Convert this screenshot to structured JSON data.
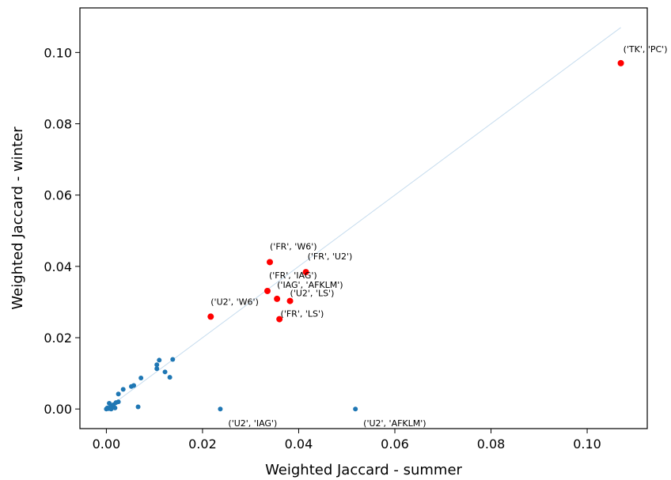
{
  "chart_data": {
    "type": "scatter",
    "xlabel": "Weighted Jaccard - summer",
    "ylabel": "Weighted Jaccard - winter",
    "xlim": [
      -0.0055,
      0.1125
    ],
    "ylim": [
      -0.0055,
      0.1125
    ],
    "xticks": [
      {
        "value": 0.0,
        "label": "0.00"
      },
      {
        "value": 0.02,
        "label": "0.02"
      },
      {
        "value": 0.04,
        "label": "0.04"
      },
      {
        "value": 0.06,
        "label": "0.06"
      },
      {
        "value": 0.08,
        "label": "0.08"
      },
      {
        "value": 0.1,
        "label": "0.10"
      }
    ],
    "yticks": [
      {
        "value": 0.0,
        "label": "0.00"
      },
      {
        "value": 0.02,
        "label": "0.02"
      },
      {
        "value": 0.04,
        "label": "0.04"
      },
      {
        "value": 0.06,
        "label": "0.06"
      },
      {
        "value": 0.08,
        "label": "0.08"
      },
      {
        "value": 0.1,
        "label": "0.10"
      }
    ],
    "grid": false,
    "reference_line": {
      "x": [
        0.0,
        0.107
      ],
      "y": [
        0.0,
        0.107
      ],
      "color": "#c6dcee"
    },
    "colors": {
      "normal": "#1f77b4",
      "highlight": "#ff0000"
    },
    "points": [
      {
        "x": 0.0,
        "y": 0.0
      },
      {
        "x": 0.0002,
        "y": 0.0003
      },
      {
        "x": 0.0005,
        "y": 0.0001
      },
      {
        "x": 0.0008,
        "y": 0.0004
      },
      {
        "x": 0.001,
        "y": 0.0
      },
      {
        "x": 0.0012,
        "y": 0.0008
      },
      {
        "x": 0.0015,
        "y": 0.0012
      },
      {
        "x": 0.0006,
        "y": 0.0016
      },
      {
        "x": 0.0018,
        "y": 0.0003
      },
      {
        "x": 0.002,
        "y": 0.0018
      },
      {
        "x": 0.0025,
        "y": 0.002
      },
      {
        "x": 0.0025,
        "y": 0.0042
      },
      {
        "x": 0.0035,
        "y": 0.0055
      },
      {
        "x": 0.0052,
        "y": 0.0063
      },
      {
        "x": 0.0057,
        "y": 0.0066
      },
      {
        "x": 0.0066,
        "y": 0.0006
      },
      {
        "x": 0.0072,
        "y": 0.0087
      },
      {
        "x": 0.0105,
        "y": 0.0113
      },
      {
        "x": 0.0105,
        "y": 0.0124
      },
      {
        "x": 0.011,
        "y": 0.0137
      },
      {
        "x": 0.0122,
        "y": 0.0104
      },
      {
        "x": 0.0132,
        "y": 0.0089
      },
      {
        "x": 0.0138,
        "y": 0.0139
      },
      {
        "x": 0.0237,
        "y": 0.0,
        "label": "('U2', 'IAG')",
        "dx": 10,
        "dy": 22
      },
      {
        "x": 0.0518,
        "y": 0.0,
        "label": "('U2', 'AFKLM')",
        "dx": 10,
        "dy": 22
      },
      {
        "x": 0.0217,
        "y": 0.0259,
        "highlight": true,
        "label": "('U2', 'W6')",
        "dx": 0,
        "dy": -15
      },
      {
        "x": 0.0335,
        "y": 0.0331,
        "highlight": true,
        "label": "('FR', 'IAG')",
        "dx": 2,
        "dy": -16
      },
      {
        "x": 0.034,
        "y": 0.0412,
        "highlight": true,
        "label": "('FR', 'W6')",
        "dx": 0,
        "dy": -16
      },
      {
        "x": 0.0355,
        "y": 0.0309,
        "highlight": true,
        "label": "('IAG', 'AFKLM')",
        "dx": 0,
        "dy": -14
      },
      {
        "x": 0.036,
        "y": 0.0252,
        "highlight": true
      },
      {
        "x": 0.0382,
        "y": 0.0303,
        "highlight": true,
        "label": "('U2', 'LS')",
        "dx": 0,
        "dy": -6
      },
      {
        "x": 0.0382,
        "y": 0.0303,
        "label": "('FR', 'LS')",
        "dx": -12,
        "dy": 20
      },
      {
        "x": 0.0415,
        "y": 0.0384,
        "highlight": true,
        "label": "('FR', 'U2')",
        "dx": 2,
        "dy": -16
      },
      {
        "x": 0.107,
        "y": 0.097,
        "highlight": true,
        "label": "('TK', 'PC')",
        "dx": 3,
        "dy": -14
      }
    ]
  }
}
